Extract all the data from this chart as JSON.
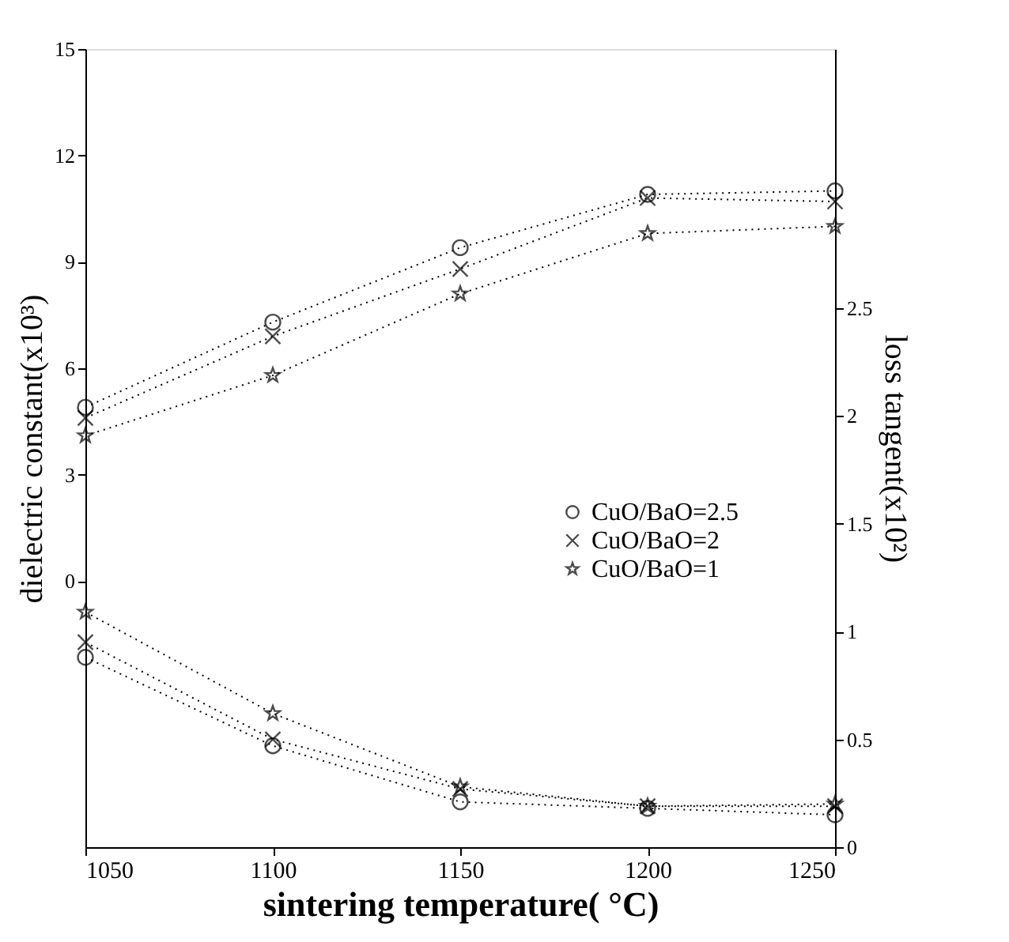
{
  "chart_data": {
    "type": "line",
    "xlabel": "sintering temperature( °C)",
    "ylabel": "dielectric constant(x10³)",
    "y2label": "loss tangent(x10²)",
    "x": [
      1050,
      1100,
      1150,
      1200,
      1250
    ],
    "xlim": [
      1050,
      1250
    ],
    "xticks": [
      1050,
      1100,
      1150,
      1200,
      1250
    ],
    "ylim": [
      -7.5,
      15
    ],
    "yticks": [
      0,
      3,
      6,
      9,
      12,
      15
    ],
    "y2lim": [
      0,
      3.7
    ],
    "y2ticks": [
      0,
      0.5,
      1,
      1.5,
      2,
      2.5
    ],
    "line_style": "dotted",
    "grid": false,
    "legend": "right",
    "series": [
      {
        "name": "CuO/BaO=2.5",
        "color": "#000000",
        "marker": "circle",
        "values": [
          4.9,
          7.3,
          9.4,
          10.9,
          11.0
        ]
      },
      {
        "name": "CuO/BaO=2",
        "color": "#000000",
        "marker": "cross",
        "values": [
          4.6,
          6.9,
          8.8,
          10.8,
          10.7
        ]
      },
      {
        "name": "CuO/BaO=1",
        "color": "#000000",
        "marker": "star",
        "values": [
          4.1,
          5.8,
          8.1,
          9.8,
          10.0
        ]
      },
      {
        "color": "#000000",
        "marker": "circle",
        "axis": "y2",
        "values": [
          0.88,
          0.47,
          0.21,
          0.18,
          0.15
        ]
      },
      {
        "color": "#000000",
        "marker": "cross",
        "axis": "y2",
        "values": [
          0.95,
          0.5,
          0.27,
          0.19,
          0.19
        ]
      },
      {
        "color": "#000000",
        "marker": "star",
        "axis": "y2",
        "values": [
          1.09,
          0.62,
          0.28,
          0.19,
          0.2
        ]
      }
    ]
  }
}
